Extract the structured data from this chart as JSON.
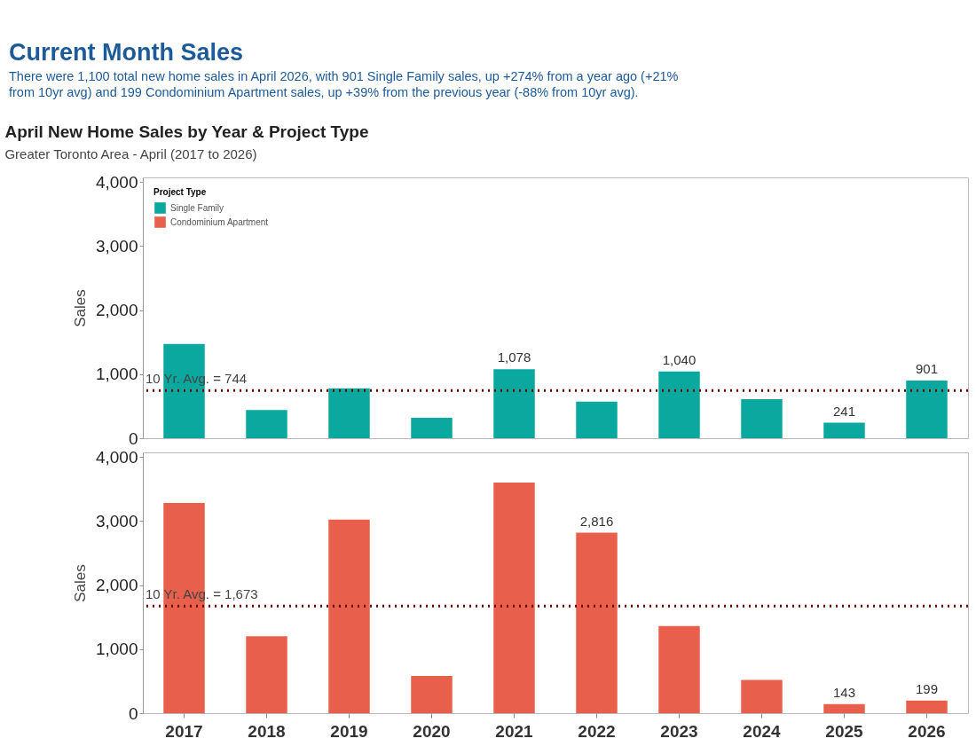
{
  "chart_data": [
    {
      "type": "bar",
      "title": "April New Home Sales by Year & Project Type",
      "subtitle": "Greater Toronto Area - April (2017 to 2026)",
      "ylabel": "Sales",
      "legend_title": "Project Type",
      "legend": "top left",
      "tick_labels": "y",
      "annotations": [
        "Current Month Sales",
        "There were 1,100 total new home sales in April 2026, with 901 Single Family sales, up +274% from a year ago (+21% from 10yr avg) and 199 Condominium Apartment sales, up +39% from the previous year (-88% from 10yr avg)."
      ],
      "categories": [
        "2017",
        "2018",
        "2019",
        "2020",
        "2021",
        "2022",
        "2023",
        "2024",
        "2025",
        "2026"
      ],
      "series": [
        {
          "name": "Single Family",
          "color": "#0aa89e",
          "values": [
            1470,
            440,
            780,
            320,
            1078,
            570,
            1040,
            610,
            241,
            901
          ],
          "value_labels": [
            null,
            null,
            null,
            null,
            "1,078",
            null,
            "1,040",
            null,
            "241",
            "901"
          ]
        }
      ],
      "ylim": [
        0,
        4070
      ],
      "yticks": [
        0,
        {
          "value": 1000,
          "label": "1,000"
        },
        {
          "value": 2000,
          "label": "2,000"
        },
        {
          "value": 3000,
          "label": "3,000"
        },
        {
          "value": 4000,
          "label": "4,000"
        }
      ],
      "ref_lines": [
        {
          "axis": "y",
          "value": 744,
          "label": "10 Yr. Avg. = 744",
          "color": "#6b0000",
          "line_style": "dotted"
        }
      ]
    },
    {
      "type": "bar",
      "ylabel": "Sales",
      "categories": [
        "2017",
        "2018",
        "2019",
        "2020",
        "2021",
        "2022",
        "2023",
        "2024",
        "2025",
        "2026"
      ],
      "series": [
        {
          "name": "Condominium Apartment",
          "color": "#e8604c",
          "values": [
            3280,
            1200,
            3020,
            580,
            3600,
            2816,
            1360,
            520,
            143,
            199
          ],
          "value_labels": [
            null,
            null,
            null,
            null,
            null,
            "2,816",
            null,
            null,
            "143",
            "199"
          ]
        }
      ],
      "ylim": [
        0,
        4070
      ],
      "yticks": [
        0,
        {
          "value": 1000,
          "label": "1,000"
        },
        {
          "value": 2000,
          "label": "2,000"
        },
        {
          "value": 3000,
          "label": "3,000"
        },
        {
          "value": 4000,
          "label": "4,000"
        }
      ],
      "ref_lines": [
        {
          "axis": "y",
          "value": 1673,
          "label": "10 Yr. Avg. = 1,673",
          "color": "#6b0000",
          "line_style": "dotted"
        }
      ]
    }
  ]
}
